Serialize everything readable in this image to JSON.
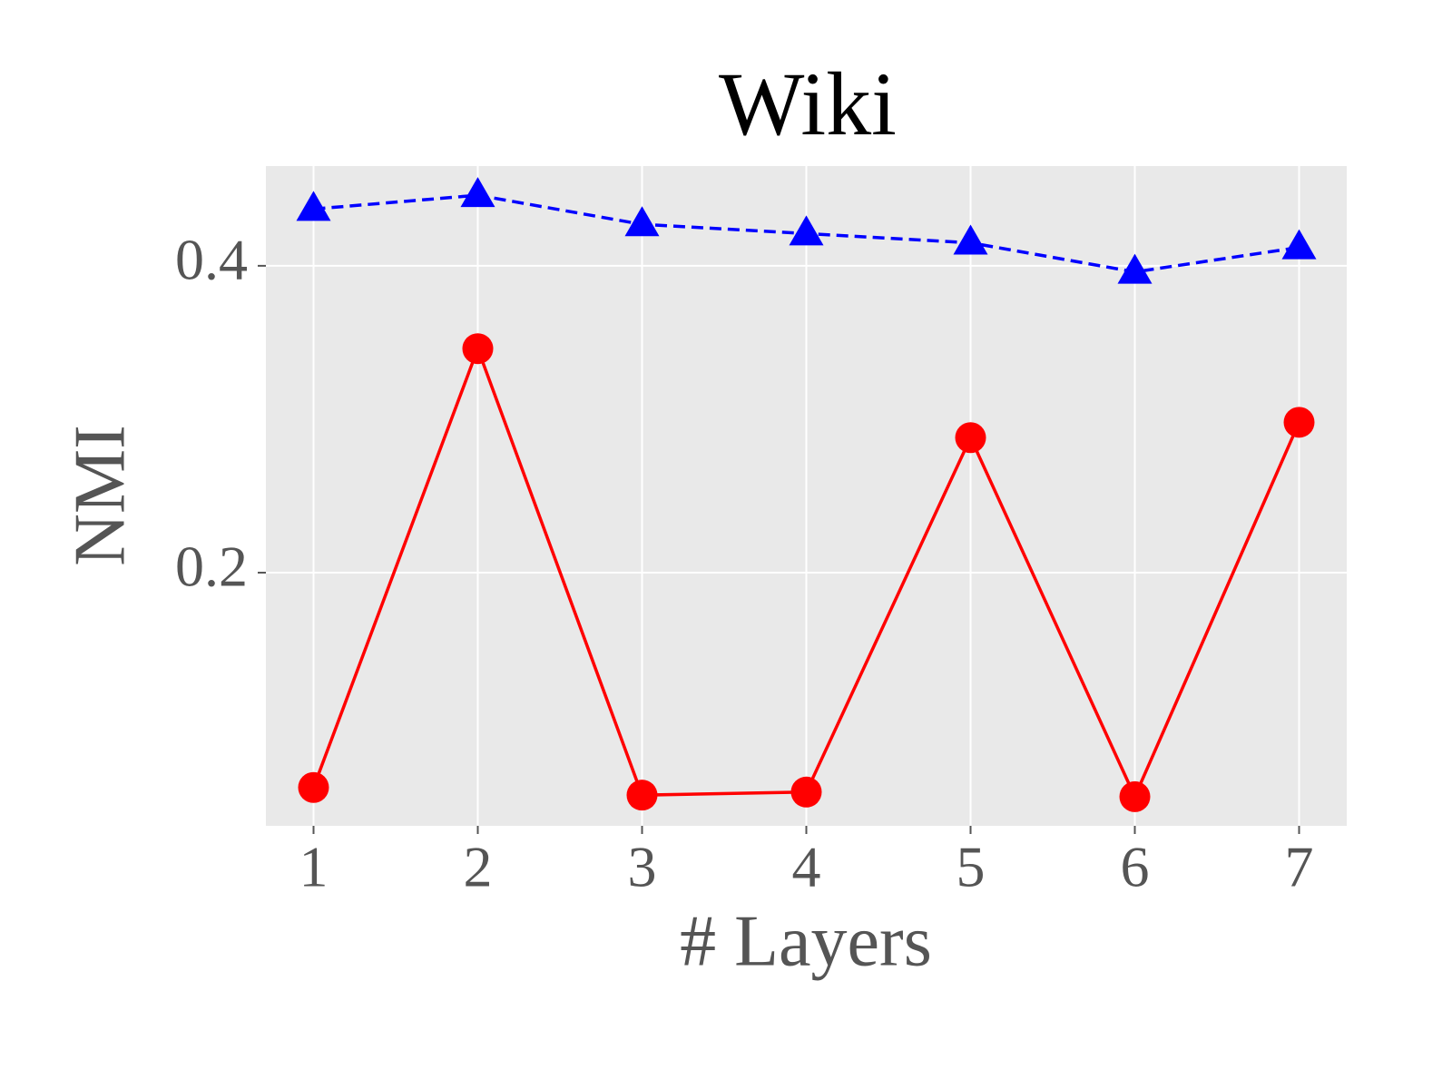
{
  "chart_data": {
    "type": "line",
    "title": "Wiki",
    "xlabel": "# Layers",
    "ylabel": "NMI",
    "x": [
      1,
      2,
      3,
      4,
      5,
      6,
      7
    ],
    "series": [
      {
        "color": "#ff0000",
        "marker": "circle",
        "linestyle": "solid",
        "values": [
          0.06,
          0.346,
          0.055,
          0.057,
          0.288,
          0.054,
          0.298
        ]
      },
      {
        "color": "#0000ff",
        "marker": "triangle",
        "linestyle": "dashed",
        "values": [
          0.437,
          0.446,
          0.427,
          0.421,
          0.415,
          0.396,
          0.412
        ]
      }
    ],
    "xlim": [
      0.71,
      7.29
    ],
    "xticks": [
      1,
      2,
      3,
      4,
      5,
      6,
      7
    ],
    "ylim": [
      0.035,
      0.465
    ],
    "yticks": [
      0.2,
      0.4
    ],
    "grid": true
  }
}
